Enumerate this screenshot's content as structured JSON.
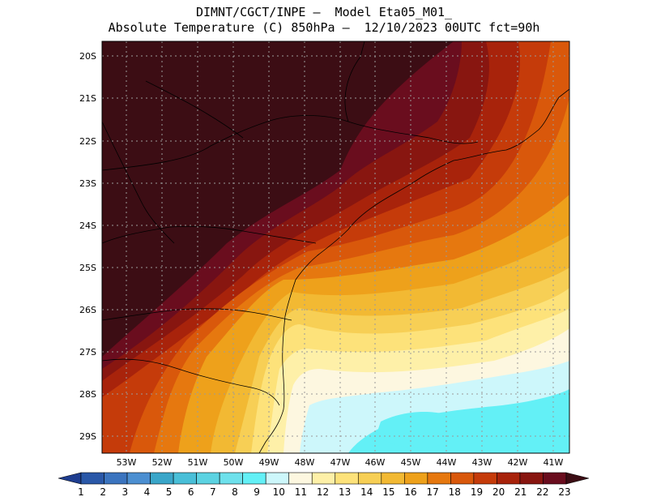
{
  "title": {
    "line1": "DIMNT/CGCT/INPE –  Model Eta05_M01_",
    "line2": "Absolute Temperature (C) 850hPa –  12/10/2023 00UTC fct=90h"
  },
  "axes": {
    "lat_labels": [
      "20S",
      "21S",
      "22S",
      "23S",
      "24S",
      "25S",
      "26S",
      "27S",
      "28S",
      "29S"
    ],
    "lon_labels": [
      "53W",
      "52W",
      "51W",
      "50W",
      "49W",
      "48W",
      "47W",
      "46W",
      "45W",
      "44W",
      "43W",
      "42W",
      "41W"
    ]
  },
  "colorbar": {
    "labels": [
      "1",
      "2",
      "3",
      "4",
      "5",
      "6",
      "7",
      "8",
      "9",
      "10",
      "11",
      "12",
      "13",
      "14",
      "15",
      "16",
      "17",
      "18",
      "19",
      "20",
      "21",
      "22",
      "23"
    ],
    "colors": [
      "#1e3d8f",
      "#2a58a8",
      "#3b74bf",
      "#4c8fd1",
      "#3aa6c9",
      "#49bfd8",
      "#5cd3e2",
      "#6ee1ec",
      "#63f0f6",
      "#cdf7fb",
      "#fdf7e0",
      "#fef0a8",
      "#fde27a",
      "#f7cf55",
      "#f2b933",
      "#eea11b",
      "#e6780f",
      "#d9580b",
      "#c53b0a",
      "#a8230b",
      "#881610",
      "#6a0d1e",
      "#3c0d14"
    ]
  },
  "map_colors": {
    "t23": "#3c0d14",
    "t22": "#6a0d1e",
    "t21": "#881610",
    "t20": "#a8230b",
    "t19": "#c53b0a",
    "t18": "#d9580b",
    "t17": "#e6780f",
    "t16": "#eea11b",
    "t15": "#f2b933",
    "t14": "#f7cf55",
    "t13": "#fde27a",
    "t12": "#fef0a8",
    "t11": "#fdf7e0",
    "t10": "#cdf7fb",
    "t9": "#63f0f6"
  }
}
